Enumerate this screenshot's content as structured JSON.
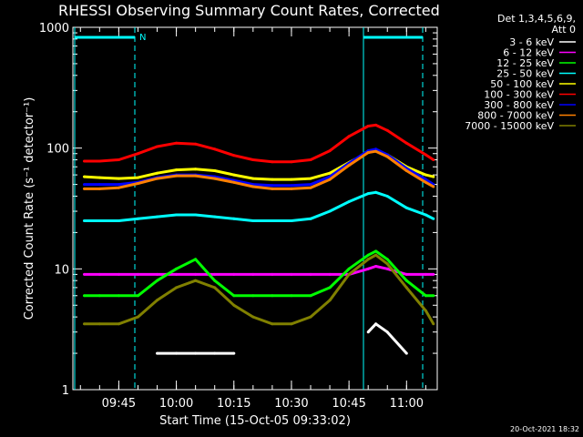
{
  "chart_data": {
    "type": "line",
    "title": "RHESSI Observing Summary Count Rates, Corrected",
    "xlabel": "Start Time (15-Oct-05 09:33:02)",
    "ylabel": "Corrected Count Rate (s⁻¹ detector⁻¹)",
    "yscale": "log",
    "ylim": [
      1,
      1000
    ],
    "xlim": [
      "09:33:02",
      "11:08:00"
    ],
    "x_ticks": [
      "09:45",
      "10:00",
      "10:15",
      "10:30",
      "10:45",
      "11:00"
    ],
    "y_ticks": [
      "1",
      "10",
      "100",
      "1000"
    ],
    "legend_title": [
      "Det 1,3,4,5,6,9,",
      "Att 0"
    ],
    "legend_position": "right",
    "annotation_text": "N",
    "timestamp": "20-Oct-2021 18:32",
    "x": [
      "09:36",
      "09:40",
      "09:45",
      "09:50",
      "09:55",
      "10:00",
      "10:05",
      "10:10",
      "10:15",
      "10:20",
      "10:25",
      "10:30",
      "10:35",
      "10:40",
      "10:45",
      "10:50",
      "10:52",
      "10:55",
      "11:00",
      "11:05",
      "11:07"
    ],
    "series": [
      {
        "name": "3 - 6 keV",
        "color": "#ffffff",
        "values": [
          null,
          null,
          null,
          null,
          2,
          2,
          2,
          2,
          2,
          null,
          null,
          null,
          null,
          null,
          null,
          3,
          3.5,
          3,
          2,
          null,
          null
        ]
      },
      {
        "name": "6 - 12 keV",
        "color": "#ff00ff",
        "values": [
          9,
          9,
          9,
          9,
          9,
          9,
          9,
          9,
          9,
          9,
          9,
          9,
          9,
          9,
          9,
          10,
          10.5,
          10,
          9,
          9,
          9
        ]
      },
      {
        "name": "12 - 25 keV",
        "color": "#00ff00",
        "values": [
          6,
          6,
          6,
          6,
          8,
          10,
          12,
          8,
          6,
          6,
          6,
          6,
          6,
          7,
          10,
          13,
          14,
          12,
          8,
          6,
          6
        ]
      },
      {
        "name": "25 - 50 keV",
        "color": "#00ffff",
        "values": [
          25,
          25,
          25,
          26,
          27,
          28,
          28,
          27,
          26,
          25,
          25,
          25,
          26,
          30,
          36,
          42,
          43,
          40,
          32,
          28,
          26
        ]
      },
      {
        "name": "50 - 100 keV",
        "color": "#ffff00",
        "values": [
          58,
          57,
          56,
          57,
          62,
          66,
          67,
          65,
          60,
          56,
          55,
          55,
          56,
          62,
          76,
          92,
          96,
          88,
          70,
          60,
          58
        ]
      },
      {
        "name": "100 - 300 keV",
        "color": "#ff0000",
        "values": [
          78,
          78,
          80,
          90,
          103,
          110,
          108,
          98,
          87,
          80,
          77,
          77,
          80,
          95,
          125,
          152,
          155,
          140,
          110,
          88,
          80
        ]
      },
      {
        "name": "300 - 800 keV",
        "color": "#0000ff",
        "values": [
          50,
          50,
          50,
          52,
          57,
          60,
          60,
          58,
          54,
          50,
          49,
          49,
          50,
          58,
          75,
          95,
          98,
          88,
          68,
          55,
          50
        ]
      },
      {
        "name": "800 - 7000 keV",
        "color": "#ff8000",
        "values": [
          46,
          46,
          47,
          51,
          56,
          59,
          59,
          56,
          52,
          48,
          46,
          46,
          47,
          55,
          72,
          92,
          94,
          85,
          65,
          52,
          48
        ]
      },
      {
        "name": "7000 - 15000 keV",
        "color": "#808000",
        "values": [
          3.5,
          3.5,
          3.5,
          4,
          5.5,
          7,
          8,
          7,
          5,
          4,
          3.5,
          3.5,
          4,
          5.5,
          9,
          12,
          13,
          11,
          7,
          4.5,
          3.5
        ]
      }
    ]
  }
}
